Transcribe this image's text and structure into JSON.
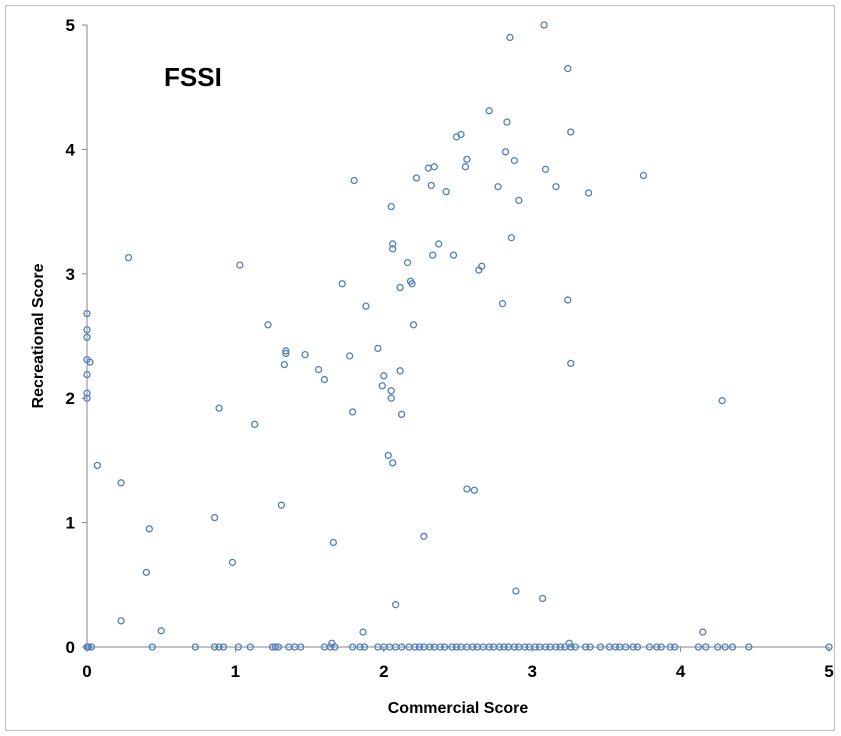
{
  "chart_data": {
    "type": "scatter",
    "title": "FSSI",
    "xlabel": "Commercial Score",
    "ylabel": "Recreational Score",
    "xlim": [
      0,
      5
    ],
    "ylim": [
      0,
      5
    ],
    "xticks": [
      "0",
      "1",
      "2",
      "3",
      "4",
      "5"
    ],
    "yticks": [
      "0",
      "1",
      "2",
      "3",
      "4",
      "5"
    ],
    "grid": false,
    "legend": "none",
    "marker_color": "#4f81bd",
    "series": [
      {
        "points": [
          [
            0,
            2.68
          ],
          [
            0,
            2.55
          ],
          [
            0,
            2.49
          ],
          [
            0,
            2.31
          ],
          [
            0.02,
            2.29
          ],
          [
            0,
            2.19
          ],
          [
            0,
            2.04
          ],
          [
            0,
            2.0
          ],
          [
            0.07,
            1.46
          ],
          [
            0.23,
            1.32
          ],
          [
            0.23,
            0.21
          ],
          [
            0.28,
            3.13
          ],
          [
            0.4,
            0.6
          ],
          [
            0.42,
            0.95
          ],
          [
            0.5,
            0.13
          ],
          [
            0.86,
            1.04
          ],
          [
            0.89,
            1.92
          ],
          [
            0.98,
            0.68
          ],
          [
            1.03,
            3.07
          ],
          [
            1.13,
            1.79
          ],
          [
            1.22,
            2.59
          ],
          [
            1.31,
            1.14
          ],
          [
            1.33,
            2.27
          ],
          [
            1.34,
            2.38
          ],
          [
            1.34,
            2.36
          ],
          [
            1.47,
            2.35
          ],
          [
            1.56,
            2.23
          ],
          [
            1.6,
            2.15
          ],
          [
            1.66,
            0.84
          ],
          [
            1.72,
            2.92
          ],
          [
            1.77,
            2.34
          ],
          [
            1.79,
            1.89
          ],
          [
            1.8,
            3.75
          ],
          [
            1.86,
            0.12
          ],
          [
            1.88,
            2.74
          ],
          [
            1.96,
            2.4
          ],
          [
            1.99,
            2.1
          ],
          [
            2.0,
            2.18
          ],
          [
            2.03,
            1.54
          ],
          [
            2.05,
            3.54
          ],
          [
            2.05,
            2.06
          ],
          [
            2.05,
            2.0
          ],
          [
            2.06,
            1.48
          ],
          [
            2.06,
            3.24
          ],
          [
            2.06,
            3.2
          ],
          [
            2.08,
            0.34
          ],
          [
            2.11,
            2.89
          ],
          [
            2.11,
            2.22
          ],
          [
            2.12,
            1.87
          ],
          [
            2.16,
            3.09
          ],
          [
            2.18,
            2.94
          ],
          [
            2.19,
            2.92
          ],
          [
            2.2,
            2.59
          ],
          [
            2.22,
            3.77
          ],
          [
            2.27,
            0.89
          ],
          [
            2.3,
            3.85
          ],
          [
            2.32,
            3.71
          ],
          [
            2.33,
            3.15
          ],
          [
            2.34,
            3.86
          ],
          [
            2.37,
            3.24
          ],
          [
            2.42,
            3.66
          ],
          [
            2.47,
            3.15
          ],
          [
            2.49,
            4.1
          ],
          [
            2.52,
            4.12
          ],
          [
            2.55,
            3.86
          ],
          [
            2.56,
            1.27
          ],
          [
            2.56,
            3.92
          ],
          [
            2.61,
            1.26
          ],
          [
            2.64,
            3.03
          ],
          [
            2.66,
            3.06
          ],
          [
            2.71,
            4.31
          ],
          [
            2.77,
            3.7
          ],
          [
            2.8,
            2.76
          ],
          [
            2.82,
            3.98
          ],
          [
            2.83,
            4.22
          ],
          [
            2.85,
            4.9
          ],
          [
            2.86,
            3.29
          ],
          [
            2.88,
            3.91
          ],
          [
            2.89,
            0.45
          ],
          [
            2.91,
            3.59
          ],
          [
            3.07,
            0.39
          ],
          [
            3.08,
            5.0
          ],
          [
            3.09,
            3.84
          ],
          [
            3.16,
            3.7
          ],
          [
            3.24,
            4.65
          ],
          [
            3.24,
            2.79
          ],
          [
            3.26,
            4.14
          ],
          [
            3.26,
            2.28
          ],
          [
            3.38,
            3.65
          ],
          [
            3.75,
            3.79
          ],
          [
            4.15,
            0.12
          ],
          [
            4.28,
            1.98
          ],
          [
            1.65,
            0.03
          ],
          [
            3.25,
            0.03
          ],
          [
            0,
            0
          ],
          [
            0.01,
            0
          ],
          [
            0.03,
            0
          ],
          [
            0.44,
            0
          ],
          [
            0.73,
            0
          ],
          [
            0.86,
            0
          ],
          [
            0.89,
            0
          ],
          [
            0.92,
            0
          ],
          [
            1.02,
            0
          ],
          [
            1.1,
            0
          ],
          [
            1.25,
            0
          ],
          [
            1.27,
            0
          ],
          [
            1.29,
            0
          ],
          [
            1.36,
            0
          ],
          [
            1.4,
            0
          ],
          [
            1.44,
            0
          ],
          [
            1.6,
            0
          ],
          [
            1.64,
            0
          ],
          [
            1.67,
            0
          ],
          [
            1.79,
            0
          ],
          [
            1.84,
            0
          ],
          [
            1.87,
            0
          ],
          [
            1.96,
            0
          ],
          [
            2.0,
            0
          ],
          [
            2.04,
            0
          ],
          [
            2.08,
            0
          ],
          [
            2.12,
            0
          ],
          [
            2.17,
            0
          ],
          [
            2.21,
            0
          ],
          [
            2.24,
            0
          ],
          [
            2.27,
            0
          ],
          [
            2.31,
            0
          ],
          [
            2.34,
            0
          ],
          [
            2.38,
            0
          ],
          [
            2.41,
            0
          ],
          [
            2.46,
            0
          ],
          [
            2.49,
            0
          ],
          [
            2.52,
            0
          ],
          [
            2.56,
            0
          ],
          [
            2.6,
            0
          ],
          [
            2.63,
            0
          ],
          [
            2.67,
            0
          ],
          [
            2.71,
            0
          ],
          [
            2.74,
            0
          ],
          [
            2.78,
            0
          ],
          [
            2.81,
            0
          ],
          [
            2.84,
            0
          ],
          [
            2.88,
            0
          ],
          [
            2.91,
            0
          ],
          [
            2.95,
            0
          ],
          [
            2.98,
            0
          ],
          [
            3.02,
            0
          ],
          [
            3.05,
            0
          ],
          [
            3.09,
            0
          ],
          [
            3.12,
            0
          ],
          [
            3.16,
            0
          ],
          [
            3.19,
            0
          ],
          [
            3.22,
            0
          ],
          [
            3.26,
            0
          ],
          [
            3.29,
            0
          ],
          [
            3.36,
            0
          ],
          [
            3.39,
            0
          ],
          [
            3.46,
            0
          ],
          [
            3.52,
            0
          ],
          [
            3.56,
            0
          ],
          [
            3.59,
            0
          ],
          [
            3.63,
            0
          ],
          [
            3.68,
            0
          ],
          [
            3.71,
            0
          ],
          [
            3.79,
            0
          ],
          [
            3.84,
            0
          ],
          [
            3.87,
            0
          ],
          [
            3.93,
            0
          ],
          [
            3.96,
            0
          ],
          [
            4.12,
            0
          ],
          [
            4.17,
            0
          ],
          [
            4.25,
            0
          ],
          [
            4.3,
            0
          ],
          [
            4.35,
            0
          ],
          [
            4.46,
            0
          ],
          [
            5.0,
            0
          ]
        ]
      }
    ]
  }
}
